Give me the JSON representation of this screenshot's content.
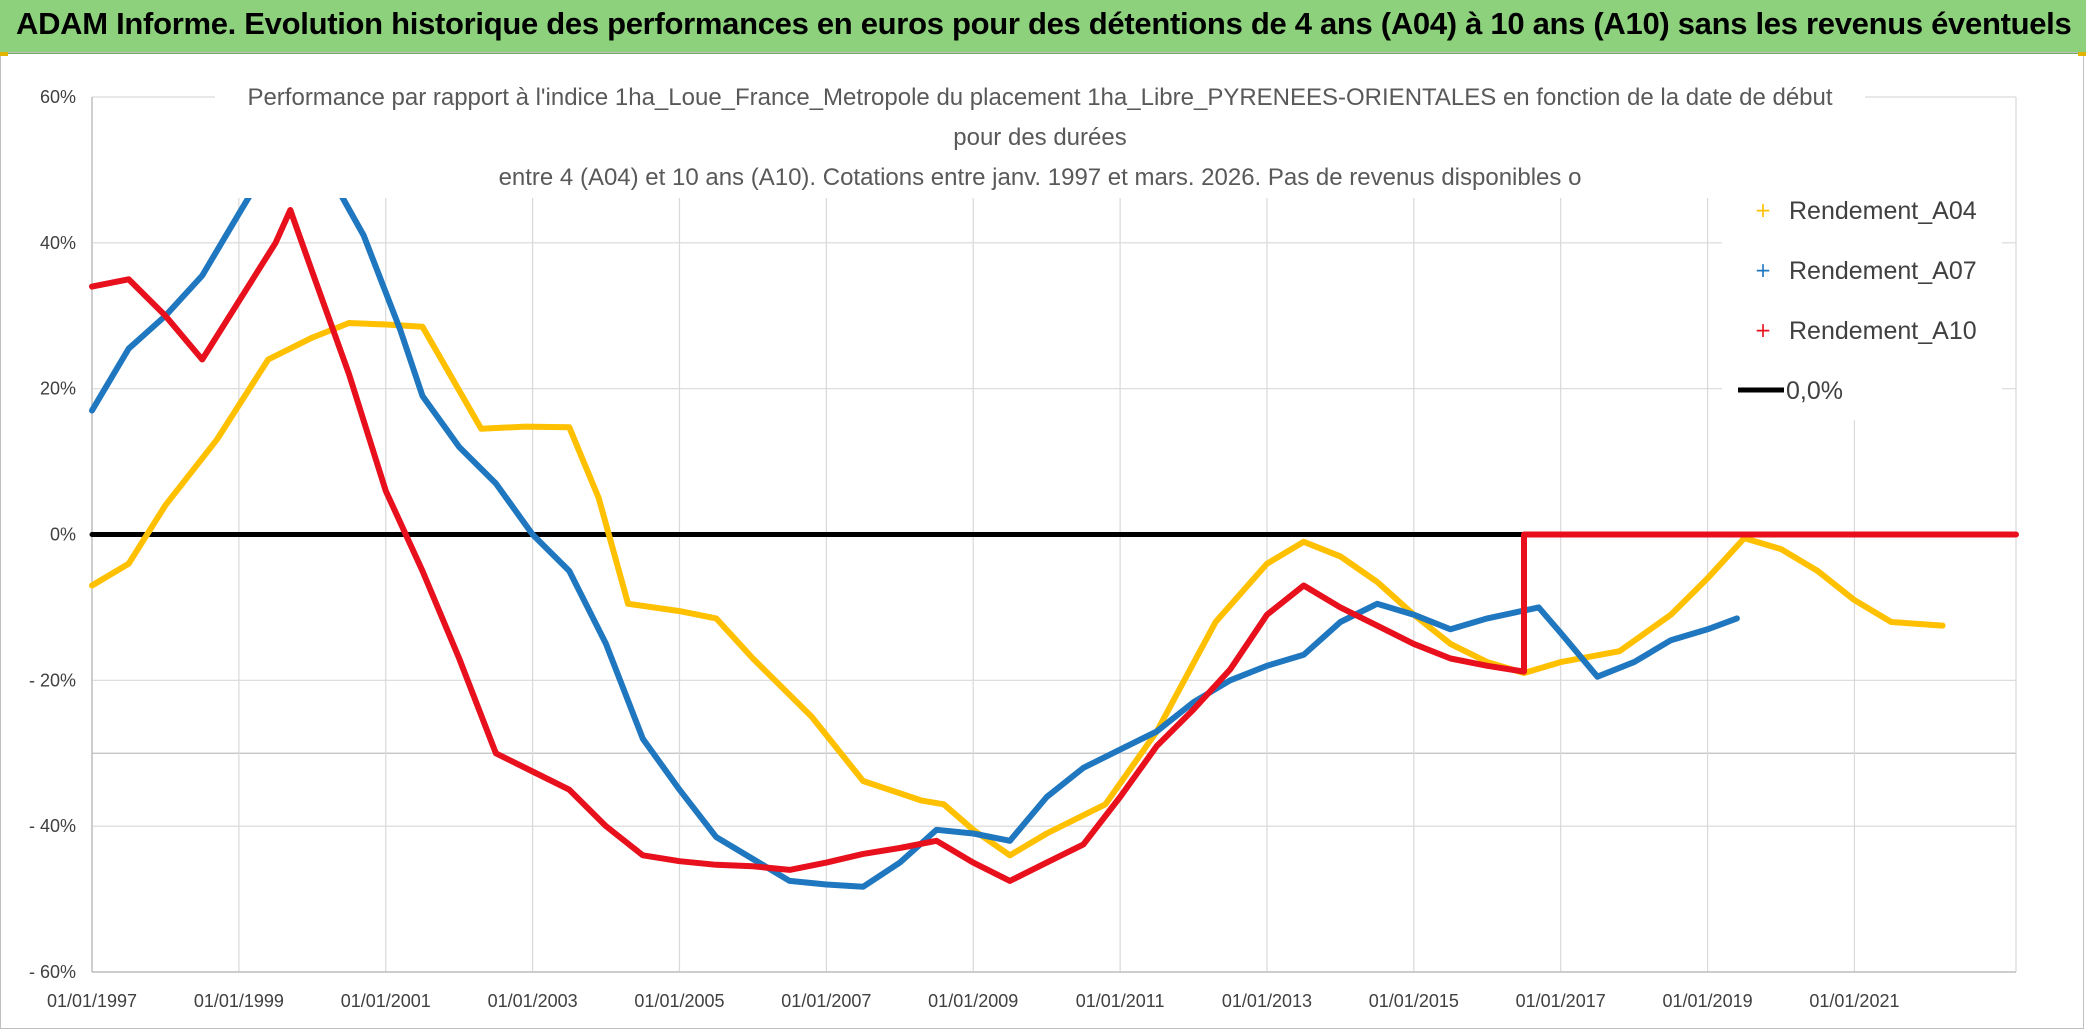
{
  "header": {
    "title": "ADAM Informe. Evolution historique des performances en euros pour des détentions de 4 ans (A04) à 10 ans (A10) sans les revenus éventuels"
  },
  "chart_data": {
    "type": "line",
    "title_lines": [
      "Performance par rapport à l'indice 1ha_Loue_France_Metropole  du placement 1ha_Libre_PYRENEES-ORIENTALES en fonction de la date de début",
      "pour des durées",
      "entre 4 (A04) et 10 ans (A10). Cotations entre janv. 1997 et mars. 2026. Pas de revenus disponibles o"
    ],
    "x_ticks": [
      "01/01/1997",
      "01/01/1999",
      "01/01/2001",
      "01/01/2003",
      "01/01/2005",
      "01/01/2007",
      "01/01/2009",
      "01/01/2011",
      "01/01/2013",
      "01/01/2015",
      "01/01/2017",
      "01/01/2019",
      "01/01/2021"
    ],
    "y_ticks": [
      "60%",
      "40%",
      "20%",
      "0%",
      "- 20%",
      "- 40%",
      "- 60%"
    ],
    "y_tick_values": [
      60,
      40,
      20,
      0,
      -20,
      -40,
      -60
    ],
    "xlim": [
      1997.0,
      2023.2
    ],
    "ylim": [
      -60,
      60
    ],
    "grid": true,
    "legend_position": "top-right",
    "series": [
      {
        "name": "Rendement_A04",
        "color": "#ffc000",
        "points": [
          [
            1997.0,
            -7.0
          ],
          [
            1997.5,
            -4.0
          ],
          [
            1998.0,
            4.0
          ],
          [
            1998.7,
            13.0
          ],
          [
            1999.4,
            24.0
          ],
          [
            2000.0,
            27.0
          ],
          [
            2000.5,
            29.0
          ],
          [
            2001.0,
            28.8
          ],
          [
            2001.5,
            28.5
          ],
          [
            2002.3,
            14.5
          ],
          [
            2002.9,
            14.8
          ],
          [
            2003.5,
            14.7
          ],
          [
            2003.9,
            5.0
          ],
          [
            2004.3,
            -9.5
          ],
          [
            2005.0,
            -10.5
          ],
          [
            2005.5,
            -11.5
          ],
          [
            2006.0,
            -17.0
          ],
          [
            2006.8,
            -25.0
          ],
          [
            2007.5,
            -33.8
          ],
          [
            2008.3,
            -36.5
          ],
          [
            2008.6,
            -37.0
          ],
          [
            2009.0,
            -40.5
          ],
          [
            2009.5,
            -44.0
          ],
          [
            2010.0,
            -41.0
          ],
          [
            2010.8,
            -37.0
          ],
          [
            2011.5,
            -27.0
          ],
          [
            2012.3,
            -12.0
          ],
          [
            2013.0,
            -4.0
          ],
          [
            2013.5,
            -1.0
          ],
          [
            2014.0,
            -3.0
          ],
          [
            2014.5,
            -6.5
          ],
          [
            2015.0,
            -11.0
          ],
          [
            2015.5,
            -15.0
          ],
          [
            2016.0,
            -17.5
          ],
          [
            2016.5,
            -19.0
          ],
          [
            2017.0,
            -17.5
          ],
          [
            2017.8,
            -16.0
          ],
          [
            2018.5,
            -11.0
          ],
          [
            2019.0,
            -6.0
          ],
          [
            2019.5,
            -0.5
          ],
          [
            2020.0,
            -2.0
          ],
          [
            2020.5,
            -5.0
          ],
          [
            2021.0,
            -9.0
          ],
          [
            2021.5,
            -12.0
          ],
          [
            2022.2,
            -12.5
          ]
        ]
      },
      {
        "name": "Rendement_A07",
        "color": "#1f77c0",
        "points": [
          [
            1997.0,
            17.0
          ],
          [
            1997.5,
            25.5
          ],
          [
            1998.0,
            30.0
          ],
          [
            1998.5,
            35.5
          ],
          [
            1999.0,
            44.0
          ],
          [
            1999.3,
            49.0
          ],
          [
            1999.7,
            53.0
          ],
          [
            2000.2,
            50.0
          ],
          [
            2000.7,
            41.0
          ],
          [
            2001.2,
            28.0
          ],
          [
            2001.5,
            19.0
          ],
          [
            2002.0,
            12.0
          ],
          [
            2002.5,
            7.0
          ],
          [
            2003.0,
            0.0
          ],
          [
            2003.5,
            -5.0
          ],
          [
            2004.0,
            -15.0
          ],
          [
            2004.5,
            -28.0
          ],
          [
            2005.0,
            -35.0
          ],
          [
            2005.5,
            -41.5
          ],
          [
            2006.0,
            -44.5
          ],
          [
            2006.5,
            -47.5
          ],
          [
            2007.0,
            -48.0
          ],
          [
            2007.5,
            -48.3
          ],
          [
            2008.0,
            -45.0
          ],
          [
            2008.5,
            -40.5
          ],
          [
            2009.0,
            -41.0
          ],
          [
            2009.5,
            -42.0
          ],
          [
            2010.0,
            -36.0
          ],
          [
            2010.5,
            -32.0
          ],
          [
            2011.0,
            -29.5
          ],
          [
            2011.5,
            -27.0
          ],
          [
            2012.0,
            -23.0
          ],
          [
            2012.5,
            -20.0
          ],
          [
            2013.0,
            -18.0
          ],
          [
            2013.5,
            -16.5
          ],
          [
            2014.0,
            -12.0
          ],
          [
            2014.5,
            -9.5
          ],
          [
            2015.0,
            -11.0
          ],
          [
            2015.5,
            -13.0
          ],
          [
            2016.0,
            -11.5
          ],
          [
            2016.7,
            -10.0
          ],
          [
            2017.0,
            -13.5
          ],
          [
            2017.5,
            -19.5
          ],
          [
            2018.0,
            -17.5
          ],
          [
            2018.5,
            -14.5
          ],
          [
            2019.0,
            -13.0
          ],
          [
            2019.4,
            -11.5
          ]
        ]
      },
      {
        "name": "Rendement_A10",
        "color": "#e8101c",
        "points": [
          [
            1997.0,
            34.0
          ],
          [
            1997.5,
            35.0
          ],
          [
            1998.0,
            30.0
          ],
          [
            1998.5,
            24.0
          ],
          [
            1999.0,
            32.0
          ],
          [
            1999.5,
            40.0
          ],
          [
            1999.7,
            44.5
          ],
          [
            2000.0,
            36.0
          ],
          [
            2000.5,
            22.0
          ],
          [
            2001.0,
            6.0
          ],
          [
            2001.5,
            -5.0
          ],
          [
            2002.0,
            -17.0
          ],
          [
            2002.5,
            -30.0
          ],
          [
            2003.0,
            -32.5
          ],
          [
            2003.5,
            -35.0
          ],
          [
            2004.0,
            -40.0
          ],
          [
            2004.5,
            -44.0
          ],
          [
            2005.0,
            -44.8
          ],
          [
            2005.5,
            -45.3
          ],
          [
            2006.0,
            -45.5
          ],
          [
            2006.5,
            -46.0
          ],
          [
            2007.0,
            -45.0
          ],
          [
            2007.5,
            -43.8
          ],
          [
            2008.0,
            -43.0
          ],
          [
            2008.5,
            -42.0
          ],
          [
            2009.0,
            -45.0
          ],
          [
            2009.5,
            -47.5
          ],
          [
            2010.0,
            -45.0
          ],
          [
            2010.5,
            -42.5
          ],
          [
            2011.0,
            -36.0
          ],
          [
            2011.5,
            -29.0
          ],
          [
            2012.0,
            -24.0
          ],
          [
            2012.5,
            -18.5
          ],
          [
            2013.0,
            -11.0
          ],
          [
            2013.5,
            -7.0
          ],
          [
            2014.0,
            -10.0
          ],
          [
            2014.5,
            -12.5
          ],
          [
            2015.0,
            -15.0
          ],
          [
            2015.5,
            -17.0
          ],
          [
            2016.0,
            -18.0
          ],
          [
            2016.5,
            -18.8
          ],
          [
            2016.5,
            0.0
          ],
          [
            2023.2,
            0.0
          ]
        ]
      },
      {
        "name": "0,0%",
        "color": "#000000",
        "points": [
          [
            1997.0,
            0.0
          ],
          [
            2023.2,
            0.0
          ]
        ]
      }
    ]
  }
}
